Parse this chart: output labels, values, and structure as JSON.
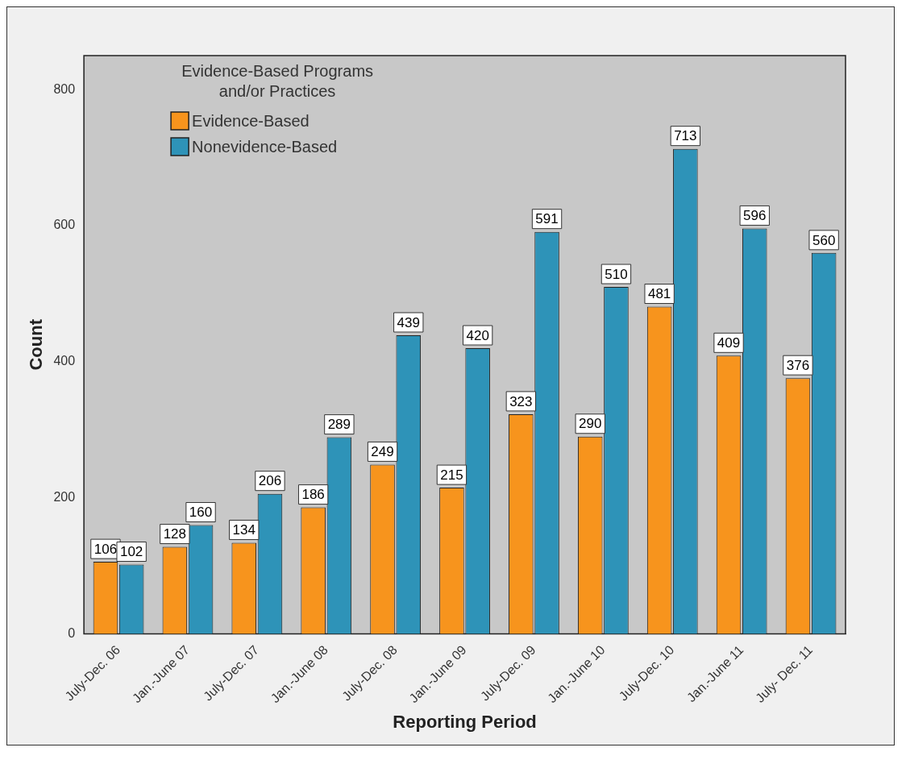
{
  "chart_data": {
    "type": "bar",
    "xlabel": "Reporting Period",
    "ylabel": "Count",
    "legend_title": "Evidence-Based Programs and/or Practices",
    "categories": [
      "July-Dec. 06",
      "Jan.-June 07",
      "July-Dec. 07",
      "Jan.-June 08",
      "July-Dec. 08",
      "Jan.-June 09",
      "July-Dec. 09",
      "Jan.-June 10",
      "July-Dec. 10",
      "Jan.-June 11",
      "July- Dec. 11"
    ],
    "series": [
      {
        "name": "Evidence-Based",
        "color": "#f7941d",
        "values": [
          106,
          128,
          134,
          186,
          249,
          215,
          323,
          290,
          481,
          409,
          376
        ]
      },
      {
        "name": "Nonevidence-Based",
        "color": "#2e93b8",
        "values": [
          102,
          160,
          206,
          289,
          439,
          420,
          591,
          510,
          713,
          596,
          560
        ]
      }
    ],
    "ylim": [
      0,
      850
    ],
    "yticks": [
      0,
      200,
      400,
      600,
      800
    ],
    "grid": false,
    "legend": "top left",
    "data_labels": true
  }
}
